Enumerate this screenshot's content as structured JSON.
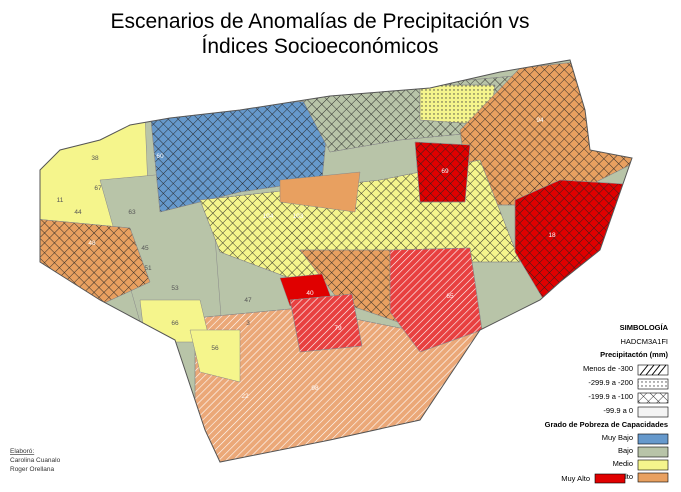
{
  "title": {
    "line1": "Escenarios de Anomalías de Precipitación vs",
    "line2": "Índices Socioeconómicos"
  },
  "legend": {
    "heading": "SIMBOLOGÍA",
    "model": "HADCM3A1FI",
    "precip_title": "Precipitactón (mm)",
    "precip": [
      "Menos de -300",
      "-299.9 a -200",
      "-199.9 a -100",
      "-99.9 a 0"
    ],
    "poverty_title": "Grado de Pobreza de Capacidades",
    "poverty": [
      "Muy Bajo",
      "Bajo",
      "Medio",
      "Alto",
      "Muy Alto"
    ]
  },
  "credits": {
    "label": "Elaboró:",
    "authors": [
      "Carolina Cuanalo",
      "Roger Orellana"
    ]
  },
  "map": {
    "labels": [
      "38",
      "67",
      "11",
      "44",
      "63",
      "48",
      "45",
      "51",
      "53",
      "66",
      "56",
      "47",
      "3",
      "22",
      "98",
      "40",
      "79",
      "65",
      "69",
      "18",
      "94",
      "103",
      "104",
      "60"
    ]
  }
}
